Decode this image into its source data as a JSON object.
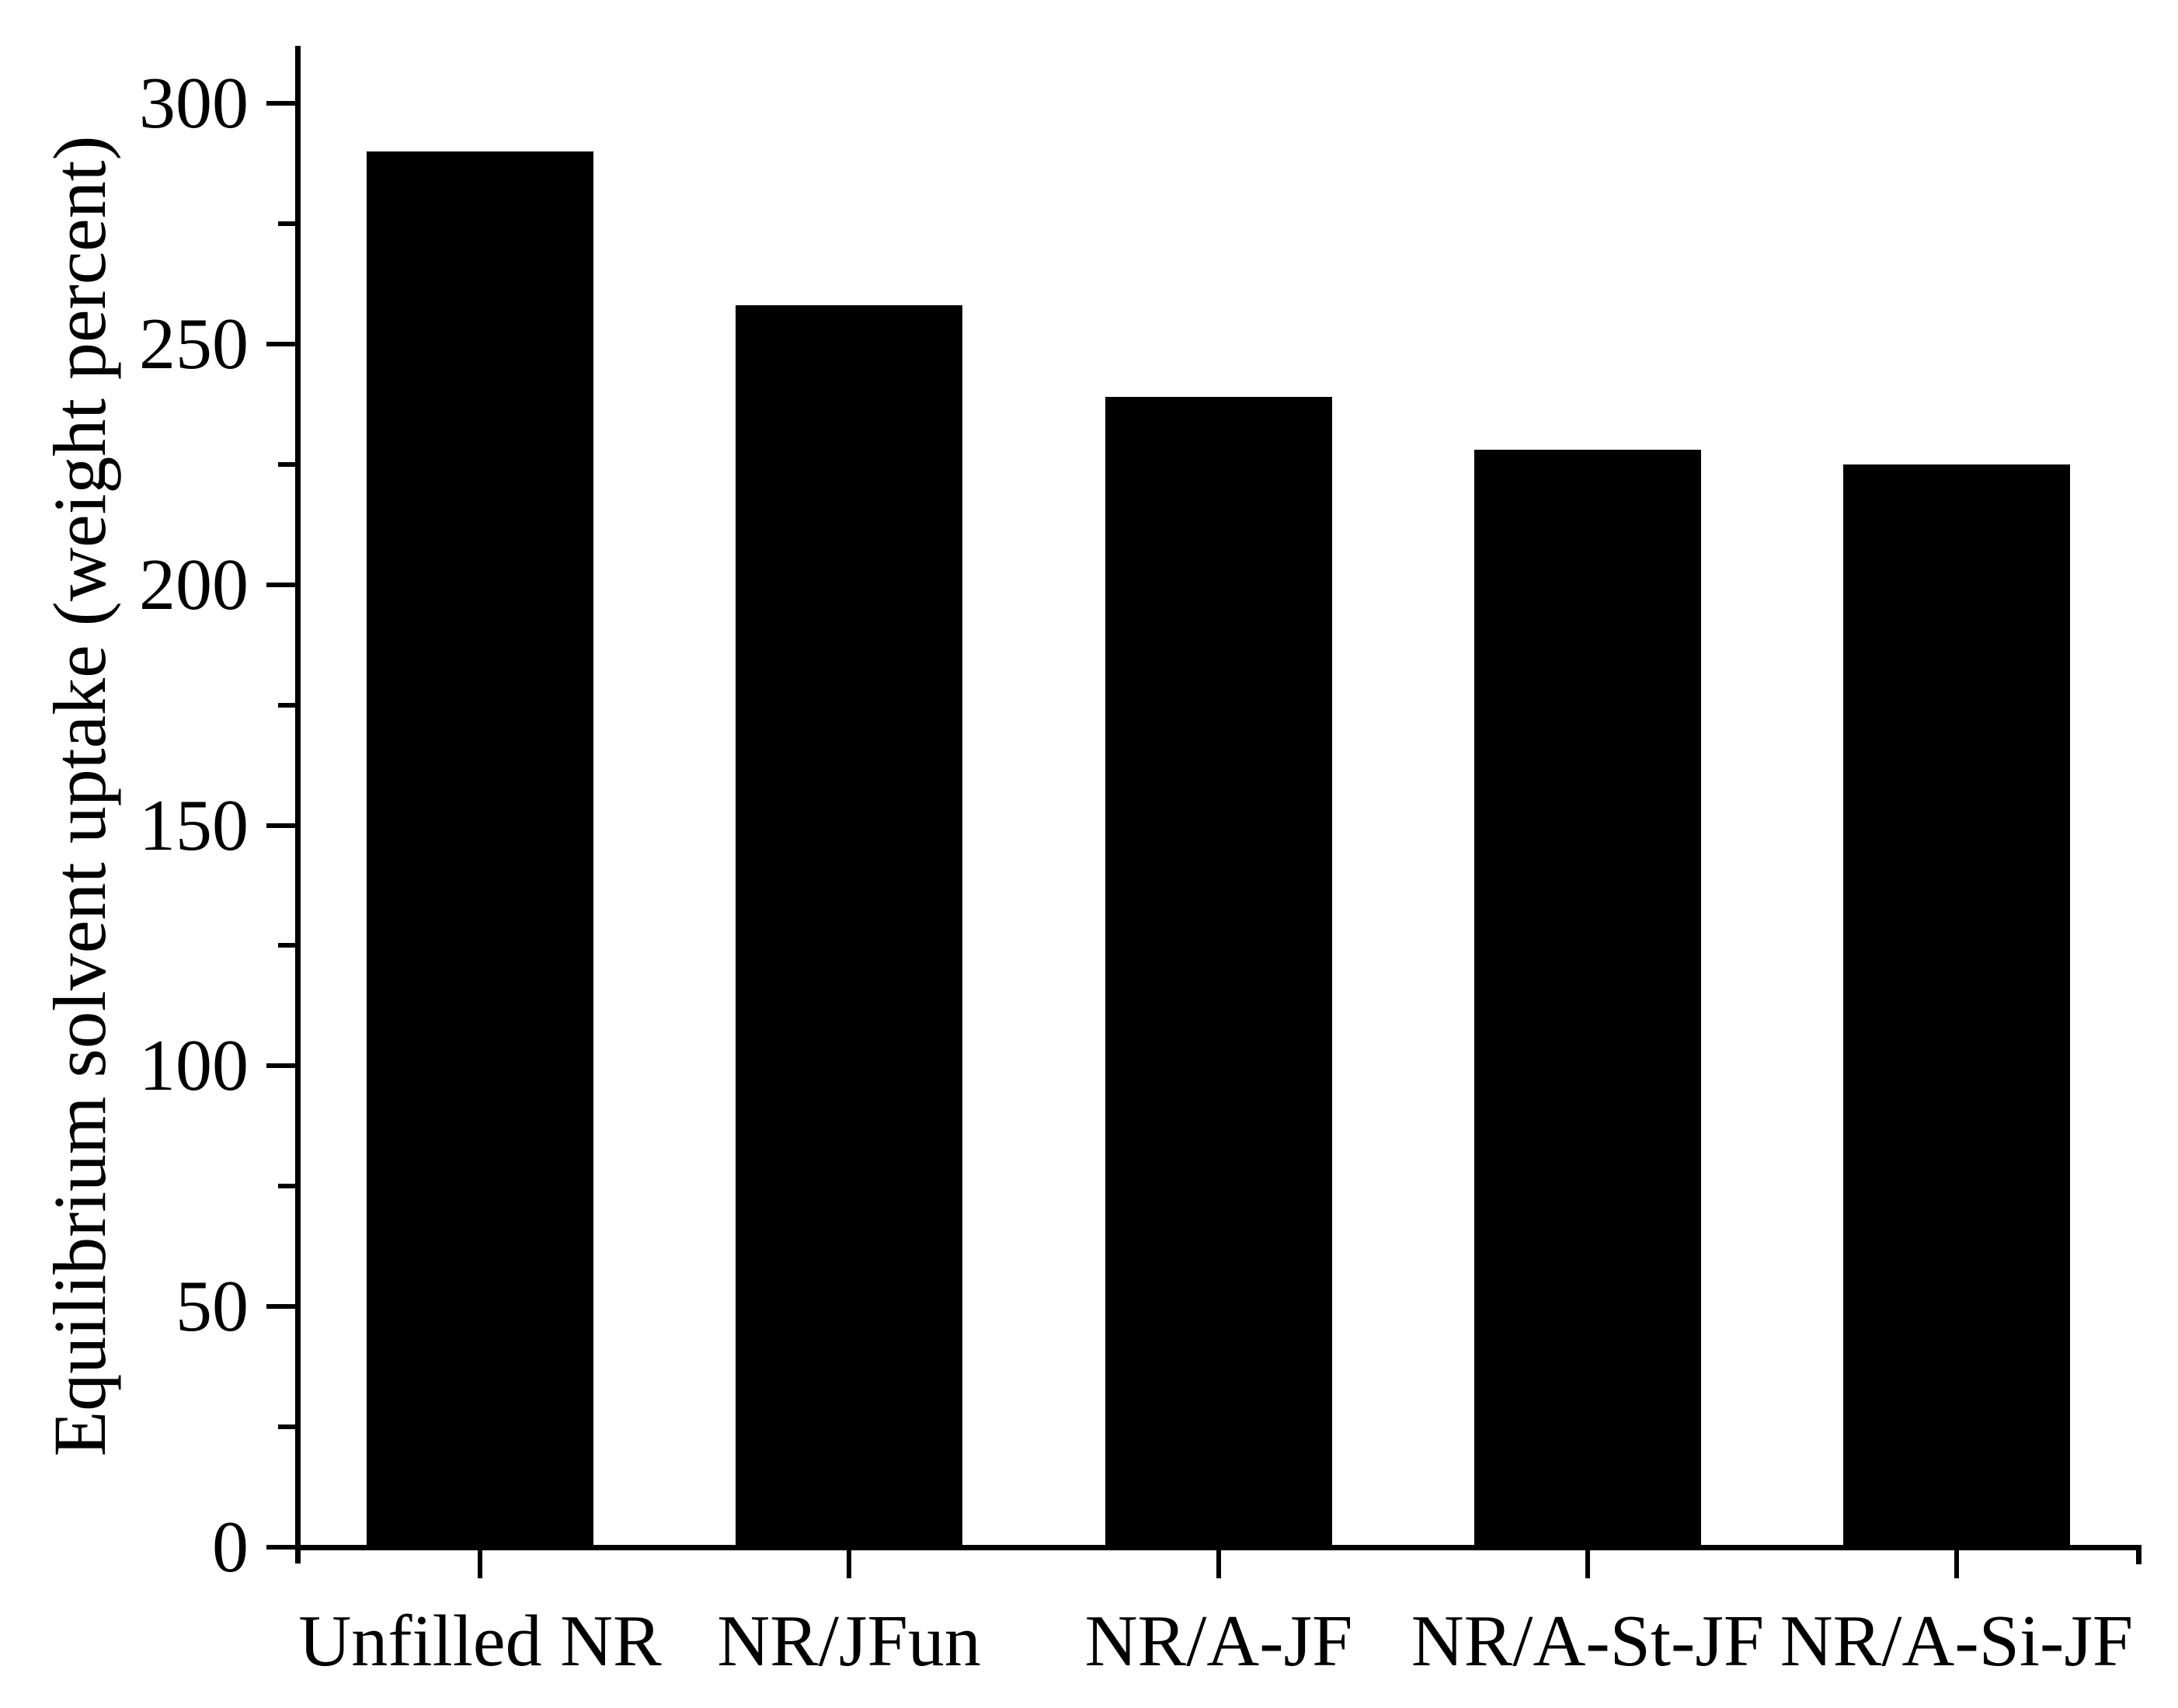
{
  "figure": {
    "background": "#ffffff",
    "ink_color": "#000000"
  },
  "chart_data": {
    "type": "bar",
    "categories": [
      "Unfilled NR",
      "NR/JFun",
      "NR/A-JF",
      "NR/A-St-JF",
      "NR/A-Si-JF"
    ],
    "values": [
      290,
      258,
      239,
      228,
      225
    ],
    "series": [
      {
        "name": "Equilibrium solvent uptake",
        "values": [
          290,
          258,
          239,
          228,
          225
        ]
      }
    ],
    "title": "",
    "xlabel": "",
    "ylabel": "Equilibrium solvent uptake (weight percent)",
    "ylim": [
      0,
      312
    ],
    "yticks_major": [
      0,
      50,
      100,
      150,
      200,
      250,
      300
    ],
    "yticks_minor": [
      25,
      75,
      125,
      175,
      225,
      275
    ],
    "bar_color": "#000000",
    "grid": false,
    "legend": null,
    "spines": [
      "left",
      "bottom"
    ]
  }
}
